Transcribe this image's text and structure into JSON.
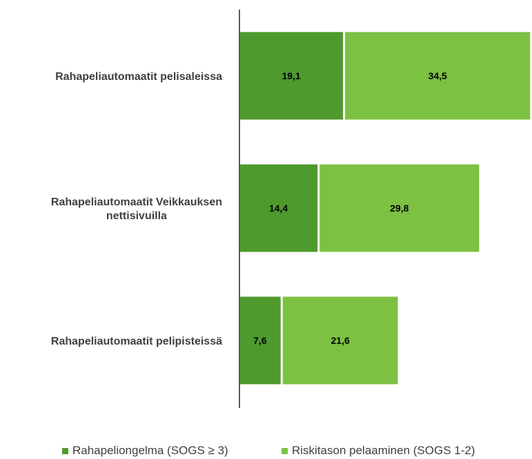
{
  "chart_data": {
    "type": "bar",
    "orientation": "horizontal",
    "stacked": true,
    "categories": [
      "Rahapeliautomaatit pelisaleissa",
      "Rahapeliautomaatit Veikkauksen nettisivuilla",
      "Rahapeliautomaatit pelipisteissä"
    ],
    "series": [
      {
        "name": "Rahapeliongelma (SOGS ≥ 3)",
        "values": [
          19.1,
          14.4,
          7.6
        ],
        "labels": [
          "19,1",
          "14,4",
          "7,6"
        ],
        "color": "#4f9a2d"
      },
      {
        "name": "Riskitason pelaaminen (SOGS 1-2)",
        "values": [
          34.5,
          29.8,
          21.6
        ],
        "labels": [
          "34,5",
          "29,8",
          "21,6"
        ],
        "color": "#7dc143"
      }
    ],
    "legend_position": "bottom",
    "grid": false
  }
}
